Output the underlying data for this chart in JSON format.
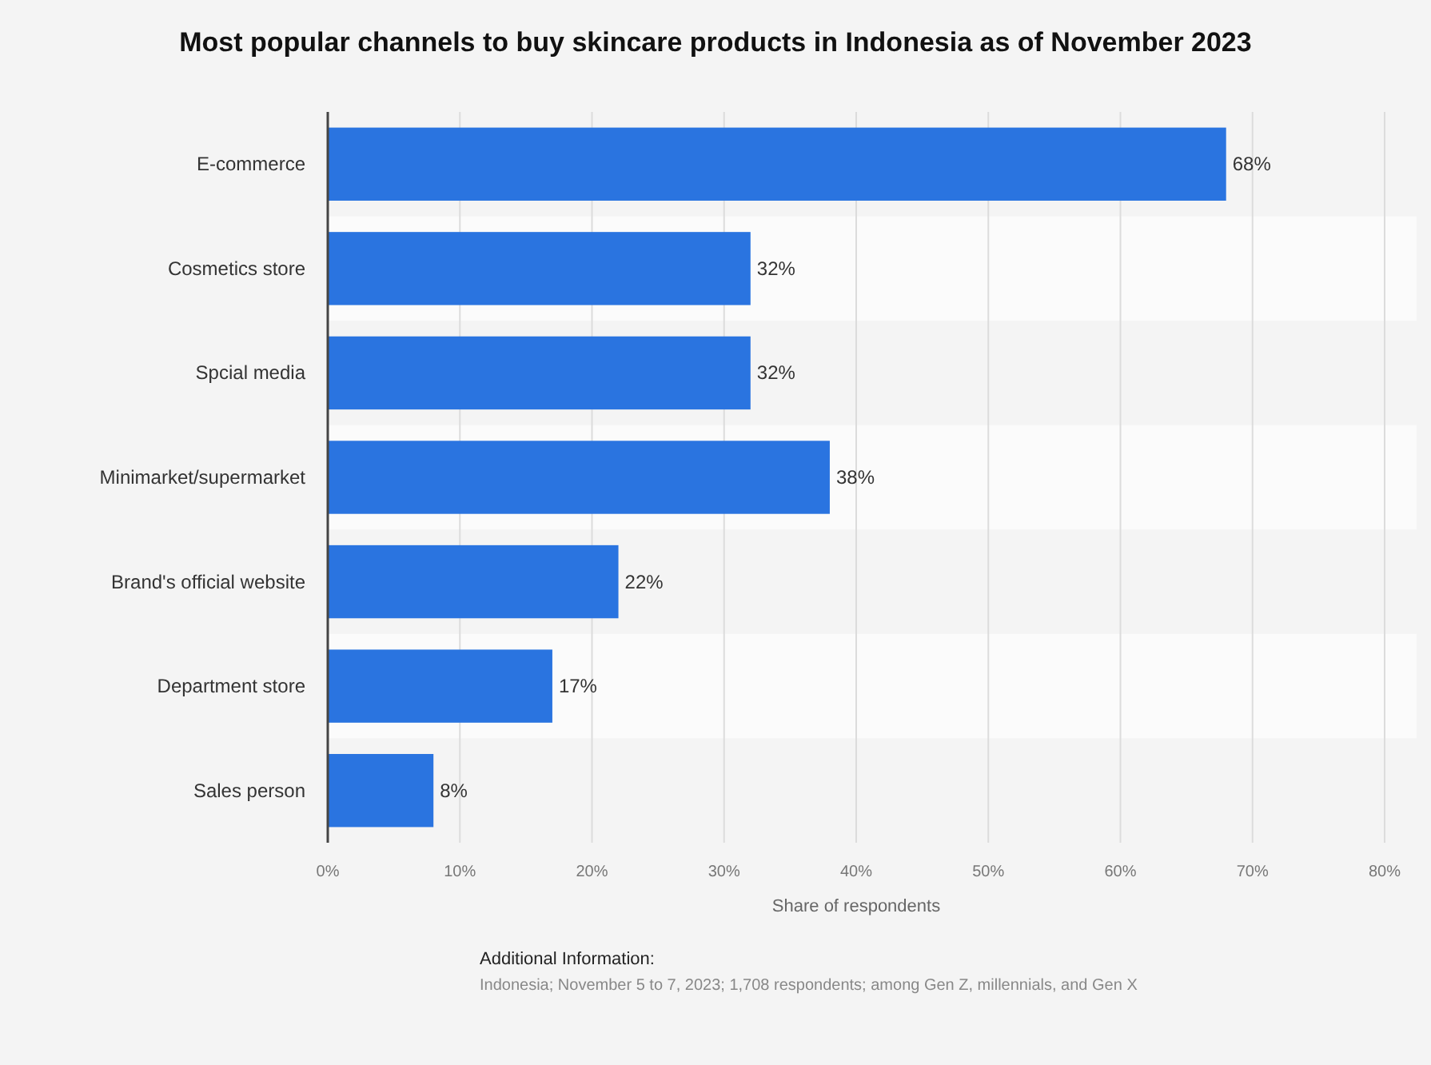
{
  "chart_data": {
    "type": "bar",
    "orientation": "horizontal",
    "title": "Most popular channels to buy skincare products in Indonesia as of November 2023",
    "categories": [
      "E-commerce",
      "Cosmetics store",
      "Spcial media",
      "Minimarket/supermarket",
      "Brand's official website",
      "Department store",
      "Sales person"
    ],
    "values": [
      68,
      32,
      32,
      38,
      22,
      17,
      8
    ],
    "value_labels": [
      "68%",
      "32%",
      "32%",
      "38%",
      "22%",
      "17%",
      "8%"
    ],
    "color": "#2a74e0",
    "xlim": [
      0,
      80
    ],
    "xticks": [
      {
        "value": 0,
        "label": "0%"
      },
      {
        "value": 10,
        "label": "10%"
      },
      {
        "value": 20,
        "label": "20%"
      },
      {
        "value": 30,
        "label": "30%"
      },
      {
        "value": 40,
        "label": "40%"
      },
      {
        "value": 50,
        "label": "50%"
      },
      {
        "value": 60,
        "label": "60%"
      },
      {
        "value": 70,
        "label": "70%"
      },
      {
        "value": 80,
        "label": "80%"
      }
    ],
    "xlabel": "Share of respondents",
    "grid": "x",
    "annotations": [
      "Additional Information:",
      "Indonesia; November 5 to 7, 2023; 1,708 respondents; among Gen Z, millennials, and Gen X"
    ]
  }
}
